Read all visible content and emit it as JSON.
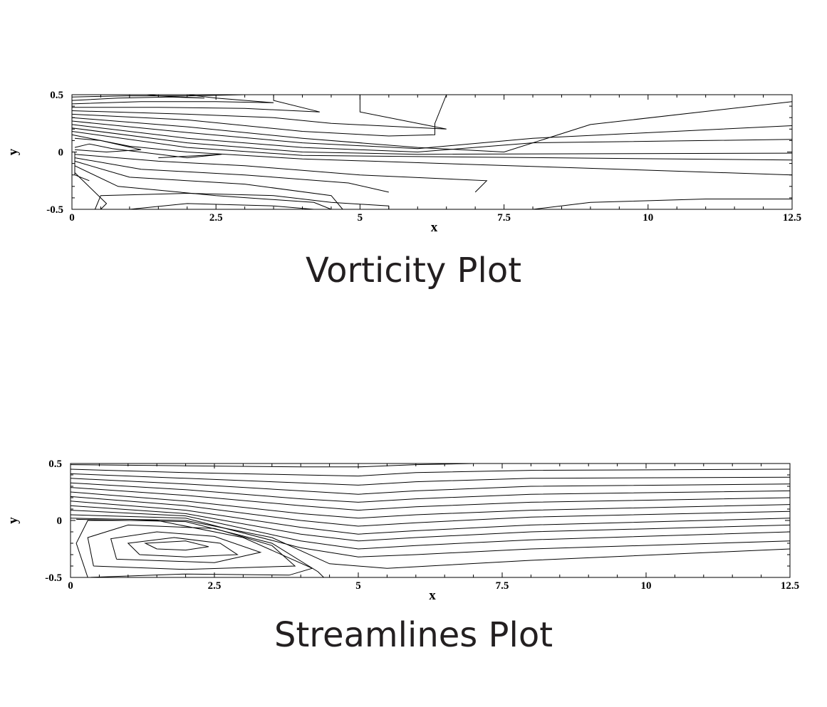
{
  "chart_data": [
    {
      "type": "contour",
      "title": "Vorticity Plot",
      "xlabel": "x",
      "ylabel": "y",
      "xlim": [
        0,
        12.5
      ],
      "ylim": [
        -0.5,
        0.5
      ],
      "xticks": [
        "0",
        "2.5",
        "5",
        "7.5",
        "10",
        "12.5"
      ],
      "yticks": [
        "0.5",
        "0",
        "-0.5"
      ],
      "contours": [
        [
          [
            0,
            0.5
          ],
          [
            12.5,
            0.5
          ]
        ],
        [
          [
            0,
            0.48
          ],
          [
            1.0,
            0.49
          ],
          [
            2.0,
            0.49
          ],
          [
            3.0,
            0.5
          ]
        ],
        [
          [
            0,
            0.45
          ],
          [
            0.8,
            0.47
          ],
          [
            1.7,
            0.48
          ],
          [
            2.3,
            0.47
          ],
          [
            1.5,
            0.49
          ],
          [
            1.3,
            0.5
          ]
        ],
        [
          [
            0,
            0.42
          ],
          [
            1.2,
            0.44
          ],
          [
            2.5,
            0.44
          ],
          [
            3.5,
            0.43
          ],
          [
            2.5,
            0.47
          ],
          [
            2.0,
            0.5
          ]
        ],
        [
          [
            0,
            0.39
          ],
          [
            1.5,
            0.39
          ],
          [
            3.0,
            0.38
          ],
          [
            4.3,
            0.35
          ],
          [
            3.5,
            0.45
          ],
          [
            3.5,
            0.5
          ]
        ],
        [
          [
            0,
            0.36
          ],
          [
            2.0,
            0.33
          ],
          [
            3.5,
            0.3
          ],
          [
            4.5,
            0.25
          ],
          [
            6.5,
            0.2
          ],
          [
            5.0,
            0.35
          ],
          [
            5.0,
            0.5
          ]
        ],
        [
          [
            0,
            0.33
          ],
          [
            2.0,
            0.28
          ],
          [
            4.0,
            0.18
          ],
          [
            5.5,
            0.14
          ],
          [
            6.3,
            0.15
          ],
          [
            6.3,
            0.25
          ],
          [
            6.5,
            0.5
          ]
        ],
        [
          [
            0,
            0.3
          ],
          [
            2.0,
            0.22
          ],
          [
            4.0,
            0.12
          ],
          [
            6.0,
            0.04
          ],
          [
            7.5,
            0.0
          ],
          [
            9.0,
            0.24
          ],
          [
            12.5,
            0.44
          ]
        ],
        [
          [
            0,
            0.27
          ],
          [
            2.0,
            0.17
          ],
          [
            4.0,
            0.08
          ],
          [
            6.0,
            0.03
          ],
          [
            8.0,
            0.12
          ],
          [
            12.5,
            0.23
          ]
        ],
        [
          [
            0,
            0.24
          ],
          [
            2.0,
            0.12
          ],
          [
            4.0,
            0.04
          ],
          [
            6.0,
            0.0
          ],
          [
            8.0,
            0.08
          ],
          [
            12.5,
            0.11
          ]
        ],
        [
          [
            0,
            0.21
          ],
          [
            2.0,
            0.08
          ],
          [
            4.0,
            0.0
          ],
          [
            6.0,
            -0.02
          ],
          [
            12.5,
            -0.01
          ]
        ],
        [
          [
            0,
            0.18
          ],
          [
            2.0,
            0.04
          ],
          [
            4.0,
            -0.03
          ],
          [
            6.0,
            -0.04
          ],
          [
            12.5,
            -0.07
          ]
        ],
        [
          [
            0,
            0.15
          ],
          [
            1.0,
            0.05
          ],
          [
            2.0,
            0.0
          ],
          [
            4.0,
            -0.06
          ],
          [
            12.5,
            -0.2
          ]
        ],
        [
          [
            0.05,
            0.12
          ],
          [
            0.5,
            0.1
          ],
          [
            1.2,
            0.02
          ],
          [
            0.6,
            0.0
          ],
          [
            0.05,
            0.02
          ]
        ],
        [
          [
            0.05,
            0.04
          ],
          [
            0.3,
            0.07
          ],
          [
            0.7,
            0.03
          ],
          [
            2.0,
            -0.05
          ],
          [
            2.6,
            -0.02
          ],
          [
            1.5,
            -0.05
          ]
        ],
        [
          [
            0.05,
            -0.02
          ],
          [
            1.5,
            -0.08
          ],
          [
            3.0,
            -0.12
          ],
          [
            5.0,
            -0.2
          ],
          [
            7.2,
            -0.25
          ],
          [
            7.0,
            -0.35
          ]
        ],
        [
          [
            0.05,
            -0.05
          ],
          [
            1.2,
            -0.15
          ],
          [
            3.0,
            -0.2
          ],
          [
            4.8,
            -0.27
          ],
          [
            5.5,
            -0.35
          ]
        ],
        [
          [
            0.05,
            -0.08
          ],
          [
            1.0,
            -0.22
          ],
          [
            3.0,
            -0.28
          ],
          [
            4.5,
            -0.38
          ],
          [
            4.7,
            -0.5
          ]
        ],
        [
          [
            0.05,
            -0.12
          ],
          [
            0.8,
            -0.3
          ],
          [
            2.5,
            -0.38
          ],
          [
            4.2,
            -0.44
          ],
          [
            4.5,
            -0.5
          ]
        ],
        [
          [
            0.05,
            -0.18
          ],
          [
            0.6,
            -0.45
          ],
          [
            0.5,
            -0.5
          ]
        ],
        [
          [
            0.4,
            -0.5
          ],
          [
            0.5,
            -0.38
          ],
          [
            2.0,
            -0.36
          ],
          [
            3.5,
            -0.38
          ],
          [
            4.5,
            -0.44
          ],
          [
            5.5,
            -0.47
          ],
          [
            5.5,
            -0.5
          ]
        ],
        [
          [
            1.0,
            -0.5
          ],
          [
            2.0,
            -0.45
          ],
          [
            3.5,
            -0.47
          ],
          [
            4.2,
            -0.5
          ]
        ],
        [
          [
            8.0,
            -0.5
          ],
          [
            9.0,
            -0.44
          ],
          [
            11.0,
            -0.41
          ],
          [
            12.5,
            -0.41
          ]
        ],
        [
          [
            0.05,
            0.0
          ],
          [
            0.05,
            -0.2
          ],
          [
            0.3,
            -0.25
          ]
        ]
      ]
    },
    {
      "type": "contour",
      "title": "Streamlines Plot",
      "xlabel": "x",
      "ylabel": "y",
      "xlim": [
        0,
        12.5
      ],
      "ylim": [
        -0.5,
        0.5
      ],
      "xticks": [
        "0",
        "2.5",
        "5",
        "7.5",
        "10",
        "12.5"
      ],
      "yticks": [
        "0.5",
        "0",
        "-0.5"
      ],
      "contours": [
        [
          [
            0,
            0.49
          ],
          [
            2.0,
            0.48
          ],
          [
            4.0,
            0.47
          ],
          [
            5.0,
            0.47
          ],
          [
            6.0,
            0.49
          ],
          [
            7.0,
            0.5
          ],
          [
            12.5,
            0.5
          ]
        ],
        [
          [
            0,
            0.45
          ],
          [
            2.0,
            0.42
          ],
          [
            4.0,
            0.4
          ],
          [
            5.0,
            0.39
          ],
          [
            6.0,
            0.42
          ],
          [
            8.0,
            0.44
          ],
          [
            12.5,
            0.45
          ]
        ],
        [
          [
            0,
            0.41
          ],
          [
            2.0,
            0.37
          ],
          [
            4.0,
            0.33
          ],
          [
            5.0,
            0.31
          ],
          [
            6.0,
            0.34
          ],
          [
            8.0,
            0.37
          ],
          [
            12.5,
            0.38
          ]
        ],
        [
          [
            0,
            0.37
          ],
          [
            2.0,
            0.32
          ],
          [
            4.0,
            0.26
          ],
          [
            5.0,
            0.23
          ],
          [
            6.0,
            0.26
          ],
          [
            8.0,
            0.3
          ],
          [
            12.5,
            0.32
          ]
        ],
        [
          [
            0,
            0.33
          ],
          [
            2.0,
            0.27
          ],
          [
            4.0,
            0.19
          ],
          [
            5.0,
            0.16
          ],
          [
            6.0,
            0.19
          ],
          [
            8.0,
            0.23
          ],
          [
            12.5,
            0.26
          ]
        ],
        [
          [
            0,
            0.29
          ],
          [
            2.0,
            0.22
          ],
          [
            4.0,
            0.13
          ],
          [
            5.0,
            0.09
          ],
          [
            6.0,
            0.12
          ],
          [
            8.0,
            0.16
          ],
          [
            12.5,
            0.2
          ]
        ],
        [
          [
            0,
            0.25
          ],
          [
            2.0,
            0.17
          ],
          [
            4.0,
            0.06
          ],
          [
            5.0,
            0.02
          ],
          [
            6.0,
            0.05
          ],
          [
            8.0,
            0.09
          ],
          [
            12.5,
            0.14
          ]
        ],
        [
          [
            0,
            0.21
          ],
          [
            2.0,
            0.13
          ],
          [
            4.0,
            0.0
          ],
          [
            5.0,
            -0.05
          ],
          [
            6.0,
            -0.02
          ],
          [
            8.0,
            0.03
          ],
          [
            12.5,
            0.08
          ]
        ],
        [
          [
            0,
            0.17
          ],
          [
            2.0,
            0.09
          ],
          [
            4.0,
            -0.06
          ],
          [
            5.0,
            -0.12
          ],
          [
            6.0,
            -0.09
          ],
          [
            8.0,
            -0.04
          ],
          [
            12.5,
            0.02
          ]
        ],
        [
          [
            0,
            0.13
          ],
          [
            2.0,
            0.06
          ],
          [
            4.0,
            -0.12
          ],
          [
            5.0,
            -0.18
          ],
          [
            6.0,
            -0.15
          ],
          [
            8.0,
            -0.1
          ],
          [
            12.5,
            -0.04
          ]
        ],
        [
          [
            0,
            0.09
          ],
          [
            2.0,
            0.04
          ],
          [
            4.0,
            -0.18
          ],
          [
            5.0,
            -0.25
          ],
          [
            6.0,
            -0.22
          ],
          [
            8.0,
            -0.17
          ],
          [
            12.5,
            -0.1
          ]
        ],
        [
          [
            0,
            0.05
          ],
          [
            2.0,
            0.02
          ],
          [
            4.0,
            -0.24
          ],
          [
            5.0,
            -0.32
          ],
          [
            6.0,
            -0.3
          ],
          [
            8.0,
            -0.25
          ],
          [
            12.5,
            -0.18
          ]
        ],
        [
          [
            0,
            0.02
          ],
          [
            2.0,
            0.0
          ],
          [
            3.5,
            -0.15
          ],
          [
            4.5,
            -0.38
          ],
          [
            5.5,
            -0.42
          ],
          [
            8.0,
            -0.35
          ],
          [
            12.5,
            -0.25
          ]
        ],
        [
          [
            0.1,
            0.01
          ],
          [
            2.0,
            -0.01
          ],
          [
            3.5,
            -0.2
          ],
          [
            4.3,
            -0.45
          ],
          [
            4.4,
            -0.5
          ]
        ],
        [
          [
            0.3,
            -0.5
          ],
          [
            0.1,
            -0.2
          ],
          [
            0.3,
            0.0
          ],
          [
            1.5,
            0.0
          ],
          [
            3.0,
            -0.15
          ],
          [
            4.2,
            -0.42
          ],
          [
            3.8,
            -0.48
          ],
          [
            2.0,
            -0.47
          ],
          [
            0.3,
            -0.5
          ]
        ],
        [
          [
            0.4,
            -0.4
          ],
          [
            0.3,
            -0.15
          ],
          [
            1.0,
            -0.04
          ],
          [
            2.5,
            -0.07
          ],
          [
            3.5,
            -0.22
          ],
          [
            3.9,
            -0.4
          ],
          [
            2.0,
            -0.43
          ],
          [
            0.4,
            -0.4
          ]
        ],
        [
          [
            0.8,
            -0.34
          ],
          [
            0.7,
            -0.16
          ],
          [
            1.5,
            -0.1
          ],
          [
            2.5,
            -0.14
          ],
          [
            3.3,
            -0.28
          ],
          [
            2.5,
            -0.37
          ],
          [
            0.8,
            -0.34
          ]
        ],
        [
          [
            1.2,
            -0.3
          ],
          [
            1.0,
            -0.2
          ],
          [
            1.8,
            -0.15
          ],
          [
            2.6,
            -0.2
          ],
          [
            2.9,
            -0.3
          ],
          [
            2.0,
            -0.32
          ],
          [
            1.2,
            -0.3
          ]
        ],
        [
          [
            1.5,
            -0.25
          ],
          [
            1.3,
            -0.2
          ],
          [
            2.0,
            -0.18
          ],
          [
            2.4,
            -0.23
          ],
          [
            2.0,
            -0.26
          ],
          [
            1.5,
            -0.25
          ]
        ]
      ]
    }
  ]
}
